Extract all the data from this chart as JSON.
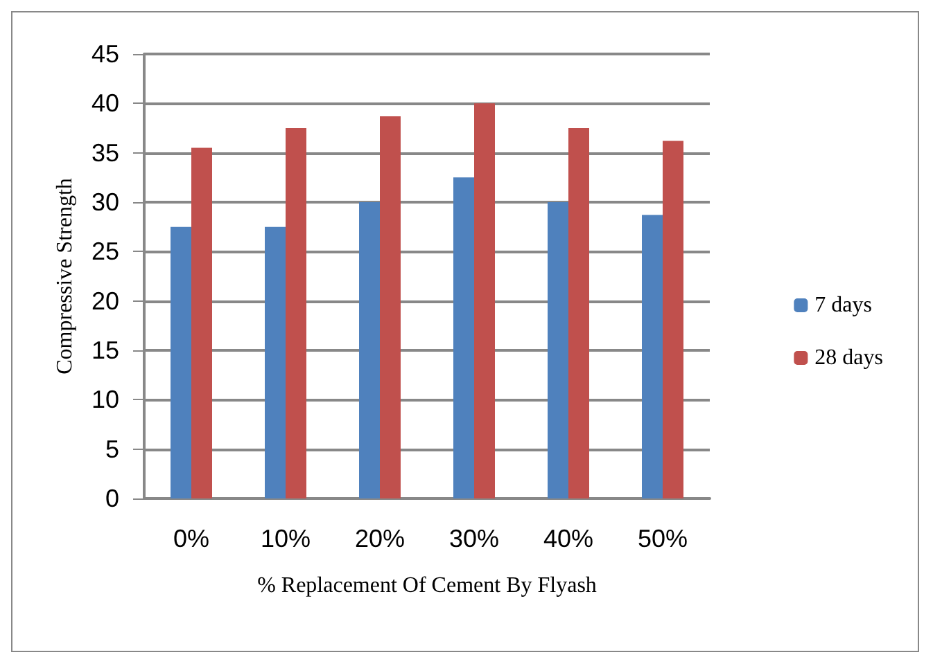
{
  "chart_data": {
    "type": "bar",
    "xlabel": "% Replacement Of Cement By Flyash",
    "ylabel": "Compressive Strength",
    "categories": [
      "0%",
      "10%",
      "20%",
      "30%",
      "40%",
      "50%"
    ],
    "series": [
      {
        "name": "7 days",
        "color": "#4f81bd",
        "values": [
          27.5,
          27.5,
          30,
          32.5,
          30,
          28.7
        ]
      },
      {
        "name": "28 days",
        "color": "#c0504d",
        "values": [
          35.5,
          37.5,
          38.7,
          40,
          37.5,
          36.2
        ]
      }
    ],
    "ylim": [
      0,
      45
    ],
    "yticks": [
      0,
      5,
      10,
      15,
      20,
      25,
      30,
      35,
      40,
      45
    ],
    "grid": "y",
    "legend": "right"
  }
}
